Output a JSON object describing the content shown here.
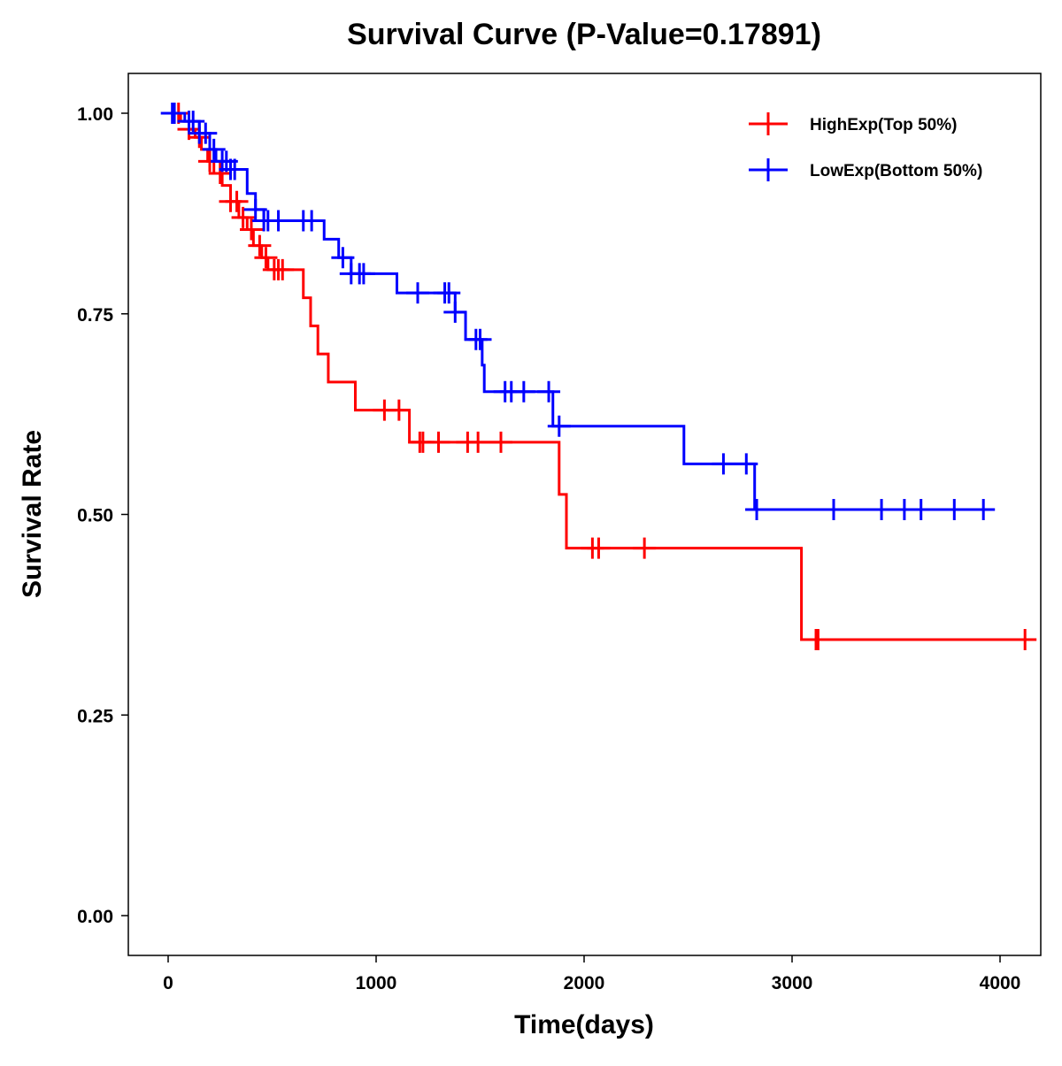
{
  "chart_data": {
    "type": "line",
    "subtype": "kaplan-meier",
    "title": "Survival Curve (P-Value=0.17891)",
    "xlabel": "Time(days)",
    "ylabel": "Survival Rate",
    "xlim": [
      -200,
      4170
    ],
    "ylim": [
      -0.05,
      1.05
    ],
    "xticks": [
      0,
      1000,
      2000,
      3000,
      4000
    ],
    "xtick_labels": [
      "0",
      "1000",
      "2000",
      "3000",
      "4000"
    ],
    "yticks": [
      0,
      0.25,
      0.5,
      0.75,
      1.0
    ],
    "ytick_labels": [
      "0.00",
      "0.25",
      "0.50",
      "0.75",
      "1.00"
    ],
    "grid": false,
    "legend_position": "top-right",
    "series": [
      {
        "name": "HighExp(Top 50%)",
        "color": "#ff0000",
        "steps": [
          [
            0,
            1.0
          ],
          [
            60,
            0.99
          ],
          [
            100,
            0.98
          ],
          [
            130,
            0.97
          ],
          [
            160,
            0.955
          ],
          [
            190,
            0.94
          ],
          [
            220,
            0.925
          ],
          [
            260,
            0.91
          ],
          [
            300,
            0.89
          ],
          [
            340,
            0.87
          ],
          [
            380,
            0.855
          ],
          [
            410,
            0.835
          ],
          [
            450,
            0.82
          ],
          [
            480,
            0.805
          ],
          [
            650,
            0.77
          ],
          [
            685,
            0.735
          ],
          [
            720,
            0.7
          ],
          [
            770,
            0.665
          ],
          [
            900,
            0.63
          ],
          [
            1160,
            0.59
          ],
          [
            1880,
            0.525
          ],
          [
            1915,
            0.458
          ],
          [
            3045,
            0.344
          ]
        ],
        "end_time": 4130,
        "censored": [
          50,
          100,
          150,
          200,
          250,
          300,
          330,
          360,
          400,
          440,
          470,
          510,
          530,
          550,
          1040,
          1110,
          1210,
          1225,
          1300,
          1440,
          1490,
          1600,
          2040,
          2070,
          2290,
          3115,
          3125,
          4120
        ]
      },
      {
        "name": "LowExp(Bottom 50%)",
        "color": "#0000ff",
        "steps": [
          [
            0,
            1.0
          ],
          [
            80,
            0.99
          ],
          [
            150,
            0.975
          ],
          [
            200,
            0.955
          ],
          [
            230,
            0.94
          ],
          [
            300,
            0.93
          ],
          [
            380,
            0.9
          ],
          [
            420,
            0.88
          ],
          [
            460,
            0.866
          ],
          [
            750,
            0.843
          ],
          [
            820,
            0.82
          ],
          [
            880,
            0.8
          ],
          [
            1100,
            0.776
          ],
          [
            1380,
            0.752
          ],
          [
            1430,
            0.718
          ],
          [
            1510,
            0.686
          ],
          [
            1520,
            0.653
          ],
          [
            1850,
            0.61
          ],
          [
            2480,
            0.563
          ],
          [
            2820,
            0.506
          ]
        ],
        "end_time": 3950,
        "censored": [
          20,
          30,
          100,
          120,
          150,
          180,
          220,
          260,
          280,
          300,
          320,
          420,
          460,
          480,
          530,
          650,
          690,
          840,
          880,
          920,
          940,
          1200,
          1330,
          1350,
          1380,
          1480,
          1500,
          1620,
          1650,
          1710,
          1830,
          1880,
          2670,
          2780,
          2830,
          3200,
          3430,
          3540,
          3620,
          3780,
          3920
        ]
      }
    ]
  }
}
